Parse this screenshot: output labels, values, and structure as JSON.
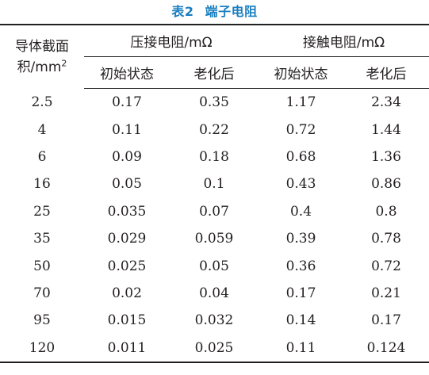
{
  "caption": {
    "number": "表2",
    "title": "端子电阻"
  },
  "header": {
    "col1_line1": "导体截面",
    "col1_line2": "积/mm",
    "col1_sup": "2",
    "group1": "压接电阻/mΩ",
    "group2": "接触电阻/mΩ",
    "sub": [
      "初始状态",
      "老化后",
      "初始状态",
      "老化后"
    ]
  },
  "rows": [
    [
      "2.5",
      "0.17",
      "0.35",
      "1.17",
      "2.34"
    ],
    [
      "4",
      "0.11",
      "0.22",
      "0.72",
      "1.44"
    ],
    [
      "6",
      "0.09",
      "0.18",
      "0.68",
      "1.36"
    ],
    [
      "16",
      "0.05",
      "0.1",
      "0.43",
      "0.86"
    ],
    [
      "25",
      "0.035",
      "0.07",
      "0.4",
      "0.8"
    ],
    [
      "35",
      "0.029",
      "0.059",
      "0.39",
      "0.78"
    ],
    [
      "50",
      "0.025",
      "0.05",
      "0.36",
      "0.72"
    ],
    [
      "70",
      "0.02",
      "0.04",
      "0.17",
      "0.21"
    ],
    [
      "95",
      "0.015",
      "0.032",
      "0.14",
      "0.17"
    ],
    [
      "120",
      "0.011",
      "0.025",
      "0.11",
      "0.124"
    ]
  ],
  "colors": {
    "caption": "#1a7fc0",
    "text": "#231f20"
  }
}
